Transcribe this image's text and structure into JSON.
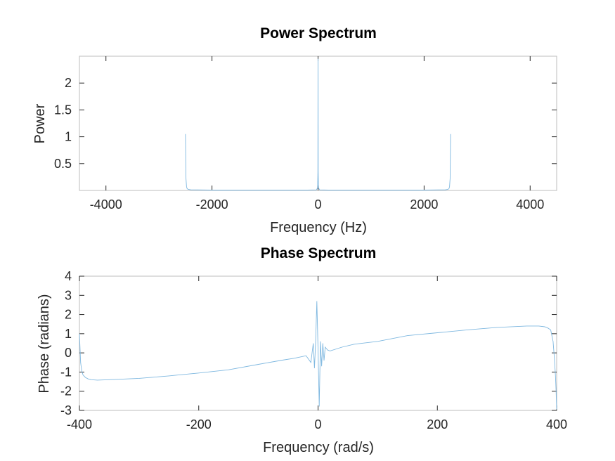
{
  "chart_data": [
    {
      "type": "line",
      "title": "Power Spectrum",
      "xlabel": "Frequency (Hz)",
      "ylabel": "Power",
      "xlim": [
        -4500,
        4500
      ],
      "ylim": [
        0,
        2.5
      ],
      "xticks": [
        -4000,
        -2000,
        0,
        2000,
        4000
      ],
      "xtick_labels": [
        "-4000",
        "-2000",
        "0",
        "2000",
        "4000"
      ],
      "yticks": [
        0.5,
        1,
        1.5,
        2
      ],
      "ytick_labels": [
        "0.5",
        "1",
        "1.5",
        "2"
      ],
      "grid": false,
      "color": "#7fb8e0",
      "series": [
        {
          "x": [
            -2500,
            -2490,
            -2480,
            -2470,
            -2450,
            -2400,
            -2000,
            -200,
            -30,
            -8,
            -3,
            0,
            3,
            8,
            30,
            200,
            2000,
            2400,
            2450,
            2470,
            2480,
            2490,
            2500
          ],
          "y": [
            1.05,
            0.22,
            0.07,
            0.035,
            0.02,
            0.012,
            0.006,
            0.006,
            0.01,
            0.05,
            0.35,
            2.45,
            0.35,
            0.05,
            0.01,
            0.006,
            0.006,
            0.012,
            0.02,
            0.035,
            0.07,
            0.22,
            1.05
          ]
        }
      ]
    },
    {
      "type": "line",
      "title": "Phase Spectrum",
      "xlabel": "Frequency (rad/s)",
      "ylabel": "Phase (radians)",
      "xlim": [
        -400,
        400
      ],
      "ylim": [
        -3,
        4
      ],
      "xticks": [
        -400,
        -200,
        0,
        200,
        400
      ],
      "xtick_labels": [
        "-400",
        "-200",
        "0",
        "200",
        "400"
      ],
      "yticks": [
        -3,
        -2,
        -1,
        0,
        1,
        2,
        3,
        4
      ],
      "ytick_labels": [
        "-3",
        "-2",
        "-1",
        "0",
        "1",
        "2",
        "3",
        "4"
      ],
      "grid": false,
      "color": "#7fb8e0",
      "series": [
        {
          "x": [
            -400,
            -399,
            -398,
            -396,
            -394,
            -390,
            -385,
            -380,
            -370,
            -350,
            -300,
            -250,
            -200,
            -150,
            -100,
            -60,
            -40,
            -20,
            -12,
            -8,
            -6,
            -4,
            -2,
            0,
            2,
            4,
            6,
            8,
            10,
            12,
            16,
            20,
            40,
            60,
            100,
            150,
            200,
            250,
            300,
            350,
            370,
            380,
            385,
            390,
            394,
            396,
            398,
            399,
            400
          ],
          "y": [
            1.0,
            0.3,
            -0.5,
            -0.95,
            -1.15,
            -1.28,
            -1.36,
            -1.4,
            -1.42,
            -1.4,
            -1.33,
            -1.2,
            -1.05,
            -0.88,
            -0.6,
            -0.38,
            -0.28,
            -0.15,
            -0.5,
            0.5,
            -0.8,
            0.6,
            2.7,
            0.2,
            -2.8,
            0.6,
            -0.7,
            0.5,
            -0.4,
            0.3,
            0.15,
            0.1,
            0.3,
            0.45,
            0.6,
            0.9,
            1.05,
            1.2,
            1.33,
            1.4,
            1.4,
            1.36,
            1.3,
            1.2,
            0.6,
            -0.2,
            -1.2,
            -2.0,
            -2.95
          ]
        }
      ]
    }
  ]
}
